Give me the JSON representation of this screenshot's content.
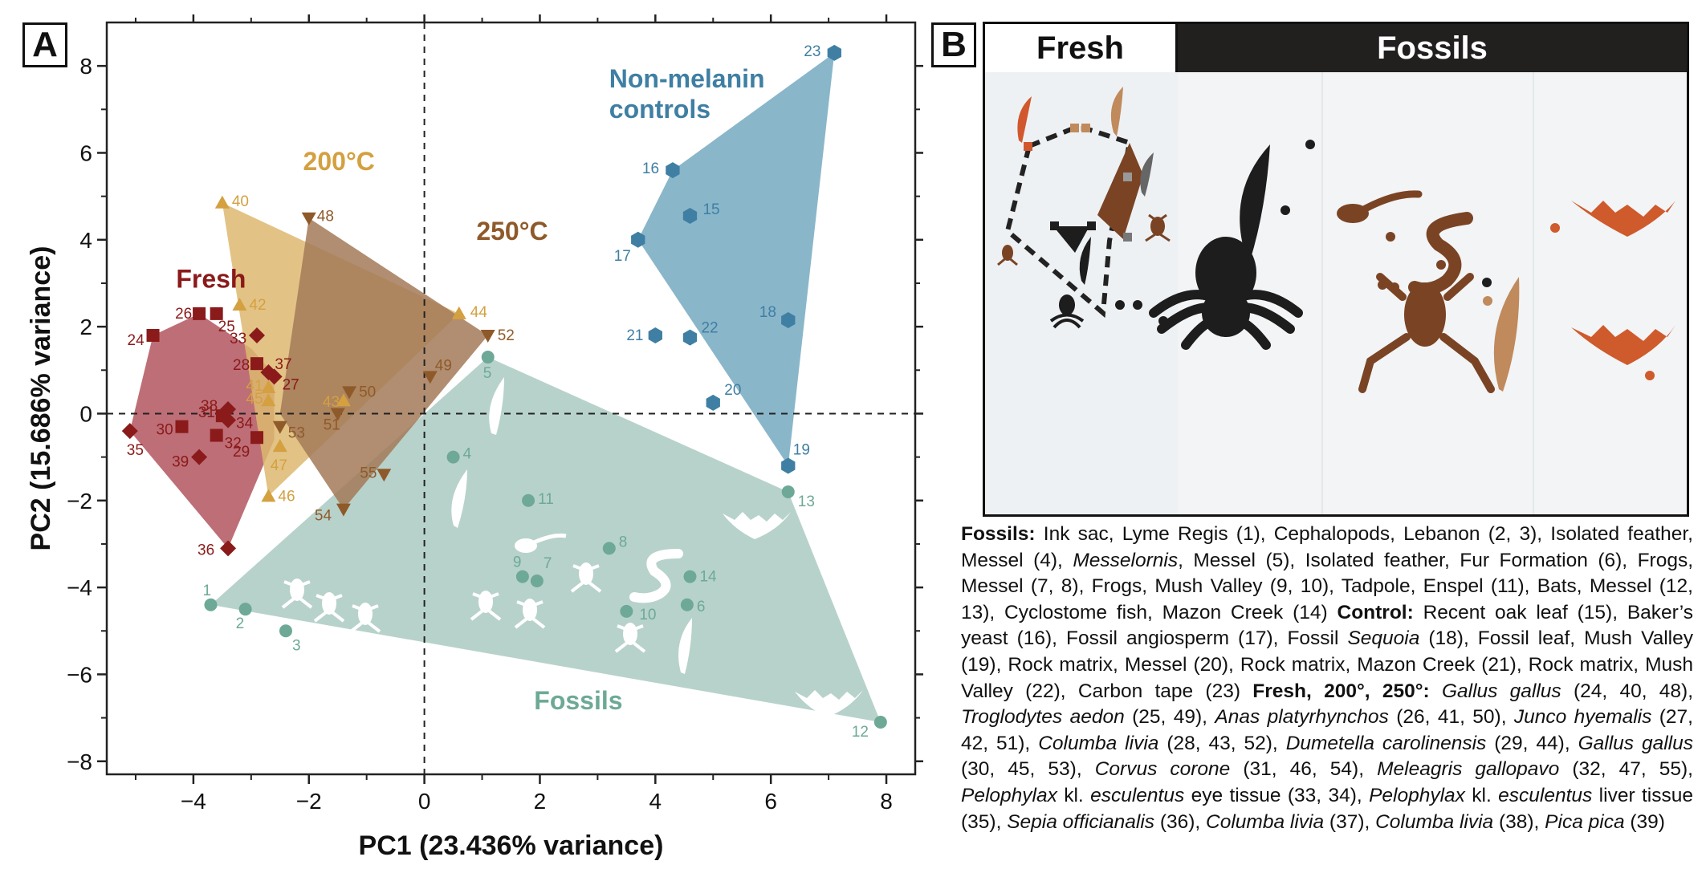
{
  "panel_a": {
    "letter": "A"
  },
  "panel_b": {
    "letter": "B",
    "header_left": "Fresh",
    "header_right": "Fossils"
  },
  "colors": {
    "fresh": "#8b1a1a",
    "fresh_fill": "#b55a63",
    "c200": "#d4a040",
    "c200_fill": "#ddb870",
    "c250": "#8f5a2a",
    "c250_fill": "#a37a58",
    "fossils": "#6da996",
    "fossils_fill": "#b3d0c8",
    "controls": "#3f7fa3",
    "controls_fill": "#8ab6ca"
  },
  "chart_data": {
    "type": "scatter",
    "xlabel": "PC1 (23.436% variance)",
    "ylabel": "PC2 (15.686% variance)",
    "xlim": [
      -5.5,
      8.5
    ],
    "ylim": [
      -8.3,
      9.0
    ],
    "xticks": [
      -4,
      -2,
      0,
      2,
      4,
      6,
      8
    ],
    "yticks": [
      -8,
      -6,
      -4,
      -2,
      0,
      2,
      4,
      6,
      8
    ],
    "grid": false,
    "zero_lines": "dashed",
    "group_labels": [
      {
        "text": "Non-melanin",
        "series": "controls",
        "x": 3.2,
        "y": 7.5
      },
      {
        "text": "controls",
        "series": "controls",
        "x": 3.2,
        "y": 6.8
      },
      {
        "text": "200°C",
        "series": "c200",
        "x": -2.1,
        "y": 5.6
      },
      {
        "text": "250°C",
        "series": "c250",
        "x": 0.9,
        "y": 4.0
      },
      {
        "text": "Fresh",
        "series": "fresh",
        "x": -4.3,
        "y": 2.9
      },
      {
        "text": "Fossils",
        "series": "fossils",
        "x": 1.9,
        "y": -6.8
      }
    ],
    "series": [
      {
        "key": "fresh",
        "hull": [
          [
            -5.1,
            -0.4
          ],
          [
            -4.7,
            1.8
          ],
          [
            -3.9,
            2.3
          ],
          [
            -3.0,
            1.5
          ],
          [
            -2.6,
            0.9
          ],
          [
            -2.6,
            -0.6
          ],
          [
            -3.4,
            -3.1
          ]
        ],
        "points": [
          {
            "label": "24",
            "x": -4.7,
            "y": 1.8,
            "marker": "square"
          },
          {
            "label": "26",
            "x": -3.9,
            "y": 2.3,
            "marker": "square"
          },
          {
            "label": "25",
            "x": -3.6,
            "y": 2.3,
            "marker": "square"
          },
          {
            "label": "33",
            "x": -2.9,
            "y": 1.8,
            "marker": "diamond"
          },
          {
            "label": "28",
            "x": -2.9,
            "y": 1.15,
            "marker": "square"
          },
          {
            "label": "37",
            "x": -2.7,
            "y": 0.95,
            "marker": "diamond"
          },
          {
            "label": "27",
            "x": -2.6,
            "y": 0.85,
            "marker": "diamond"
          },
          {
            "label": "38",
            "x": -3.4,
            "y": 0.1,
            "marker": "diamond"
          },
          {
            "label": "31",
            "x": -3.5,
            "y": -0.05,
            "marker": "square"
          },
          {
            "label": "34",
            "x": -3.4,
            "y": -0.15,
            "marker": "diamond"
          },
          {
            "label": "30",
            "x": -4.2,
            "y": -0.3,
            "marker": "square"
          },
          {
            "label": "35",
            "x": -5.1,
            "y": -0.4,
            "marker": "diamond"
          },
          {
            "label": "32",
            "x": -3.6,
            "y": -0.5,
            "marker": "square"
          },
          {
            "label": "29",
            "x": -2.9,
            "y": -0.55,
            "marker": "square"
          },
          {
            "label": "39",
            "x": -3.9,
            "y": -1.0,
            "marker": "diamond"
          },
          {
            "label": "36",
            "x": -3.4,
            "y": -3.1,
            "marker": "diamond"
          }
        ]
      },
      {
        "key": "c200",
        "hull": [
          [
            -3.5,
            4.85
          ],
          [
            0.6,
            2.3
          ],
          [
            -2.7,
            -1.9
          ]
        ],
        "points": [
          {
            "label": "40",
            "x": -3.5,
            "y": 4.85,
            "marker": "triangle-up"
          },
          {
            "label": "42",
            "x": -3.2,
            "y": 2.5,
            "marker": "triangle-up"
          },
          {
            "label": "44",
            "x": 0.6,
            "y": 2.3,
            "marker": "triangle-up"
          },
          {
            "label": "41",
            "x": -2.7,
            "y": 0.6,
            "marker": "triangle-up"
          },
          {
            "label": "45",
            "x": -2.7,
            "y": 0.3,
            "marker": "triangle-up"
          },
          {
            "label": "43",
            "x": -1.4,
            "y": 0.3,
            "marker": "triangle-up"
          },
          {
            "label": "47",
            "x": -2.5,
            "y": -0.75,
            "marker": "triangle-up"
          },
          {
            "label": "46",
            "x": -2.7,
            "y": -1.9,
            "marker": "triangle-up"
          }
        ]
      },
      {
        "key": "c250",
        "hull": [
          [
            -2.0,
            4.5
          ],
          [
            1.1,
            1.8
          ],
          [
            -1.4,
            -2.2
          ],
          [
            -2.5,
            0.0
          ]
        ],
        "points": [
          {
            "label": "48",
            "x": -2.0,
            "y": 4.5,
            "marker": "triangle-down"
          },
          {
            "label": "52",
            "x": 1.1,
            "y": 1.8,
            "marker": "triangle-down"
          },
          {
            "label": "49",
            "x": 0.1,
            "y": 0.85,
            "marker": "triangle-down"
          },
          {
            "label": "50",
            "x": -1.3,
            "y": 0.5,
            "marker": "triangle-down"
          },
          {
            "label": "51",
            "x": -1.5,
            "y": 0.0,
            "marker": "triangle-down"
          },
          {
            "label": "53",
            "x": -2.5,
            "y": -0.3,
            "marker": "triangle-down"
          },
          {
            "label": "55",
            "x": -0.7,
            "y": -1.4,
            "marker": "triangle-down"
          },
          {
            "label": "54",
            "x": -1.4,
            "y": -2.2,
            "marker": "triangle-down"
          }
        ]
      },
      {
        "key": "fossils",
        "hull": [
          [
            1.1,
            1.3
          ],
          [
            6.3,
            -1.8
          ],
          [
            7.9,
            -7.1
          ],
          [
            -3.7,
            -4.4
          ]
        ],
        "points": [
          {
            "label": "5",
            "x": 1.1,
            "y": 1.3,
            "marker": "circle"
          },
          {
            "label": "4",
            "x": 0.5,
            "y": -1.0,
            "marker": "circle"
          },
          {
            "label": "11",
            "x": 1.8,
            "y": -2.0,
            "marker": "circle"
          },
          {
            "label": "13",
            "x": 6.3,
            "y": -1.8,
            "marker": "circle"
          },
          {
            "label": "8",
            "x": 3.2,
            "y": -3.1,
            "marker": "circle"
          },
          {
            "label": "9",
            "x": 1.7,
            "y": -3.75,
            "marker": "circle"
          },
          {
            "label": "7",
            "x": 1.95,
            "y": -3.85,
            "marker": "circle"
          },
          {
            "label": "14",
            "x": 4.6,
            "y": -3.75,
            "marker": "circle"
          },
          {
            "label": "1",
            "x": -3.7,
            "y": -4.4,
            "marker": "circle"
          },
          {
            "label": "2",
            "x": -3.1,
            "y": -4.5,
            "marker": "circle"
          },
          {
            "label": "6",
            "x": 4.55,
            "y": -4.4,
            "marker": "circle"
          },
          {
            "label": "10",
            "x": 3.5,
            "y": -4.55,
            "marker": "circle"
          },
          {
            "label": "3",
            "x": -2.4,
            "y": -5.0,
            "marker": "circle"
          },
          {
            "label": "12",
            "x": 7.9,
            "y": -7.1,
            "marker": "circle"
          }
        ]
      },
      {
        "key": "controls",
        "hull": [
          [
            7.1,
            8.3
          ],
          [
            6.3,
            -1.2
          ],
          [
            3.7,
            4.0
          ],
          [
            4.3,
            5.6
          ]
        ],
        "points": [
          {
            "label": "23",
            "x": 7.1,
            "y": 8.3,
            "marker": "hexagon"
          },
          {
            "label": "16",
            "x": 4.3,
            "y": 5.6,
            "marker": "hexagon"
          },
          {
            "label": "15",
            "x": 4.6,
            "y": 4.55,
            "marker": "hexagon"
          },
          {
            "label": "17",
            "x": 3.7,
            "y": 4.0,
            "marker": "hexagon"
          },
          {
            "label": "18",
            "x": 6.3,
            "y": 2.15,
            "marker": "hexagon"
          },
          {
            "label": "21",
            "x": 4.0,
            "y": 1.8,
            "marker": "hexagon"
          },
          {
            "label": "22",
            "x": 4.6,
            "y": 1.75,
            "marker": "hexagon"
          },
          {
            "label": "20",
            "x": 5.0,
            "y": 0.25,
            "marker": "hexagon"
          },
          {
            "label": "19",
            "x": 6.3,
            "y": -1.2,
            "marker": "hexagon"
          }
        ]
      }
    ]
  },
  "caption": {
    "fossils_head": "Fossils:",
    "fossils_text": " Ink sac, Lyme Regis (1), Cephalopods, Lebanon (2, 3), Isolated feather, Messel (4), ",
    "fossils_italic1": "Messelornis",
    "fossils_text2": ", Messel (5), Isolated feather, Fur Formation (6), Frogs, Messel (7, 8), Frogs, Mush Valley (9, 10), Tadpole, Enspel (11), Bats, Messel (12, 13), Cyclostome fish, Mazon Creek (14) ",
    "control_head": "Control:",
    "control_text": " Recent oak leaf (15), Baker’s yeast (16), Fossil angiosperm (17), Fossil ",
    "control_italic": "Sequoia",
    "control_text2": " (18), Fossil leaf, Mush Valley (19), Rock matrix, Messel (20), Rock matrix, Mazon Creek (21), Rock matrix, Mush Valley (22), Carbon tape (23) ",
    "fresh_head": "Fresh, 200°, 250°:",
    "species": [
      {
        "name": "Gallus gallus",
        "ids": " (24, 40, 48), "
      },
      {
        "name": "Troglodytes aedon",
        "ids": " (25, 49), "
      },
      {
        "name": "Anas platyrhynchos",
        "ids": " (26, 41, 50), "
      },
      {
        "name": "Junco hyemalis",
        "ids": " (27, 42, 51), "
      },
      {
        "name": "Columba livia",
        "ids": " (28, 43, 52), "
      },
      {
        "name": "Dumetella carolinensis",
        "ids": " (29, 44), "
      },
      {
        "name": "Gallus gallus",
        "ids": " (30, 45, 53), "
      },
      {
        "name": "Corvus corone",
        "ids": " (31, 46, 54), "
      },
      {
        "name": "Meleagris gallopavo",
        "ids": " (32, 47, 55), "
      },
      {
        "name": "Pelophylax",
        "ids": " kl. "
      },
      {
        "name": "esculentus",
        "ids": " eye tissue (33, 34), "
      },
      {
        "name": "Pelophylax",
        "ids": " kl. "
      },
      {
        "name": "esculentus",
        "ids": " liver tissue (35), "
      },
      {
        "name": "Sepia officianalis",
        "ids": " (36), "
      },
      {
        "name": "Columba livia",
        "ids": " (37), "
      },
      {
        "name": "Columba livia",
        "ids": " (38), "
      },
      {
        "name": "Pica pica",
        "ids": " (39)"
      }
    ]
  }
}
